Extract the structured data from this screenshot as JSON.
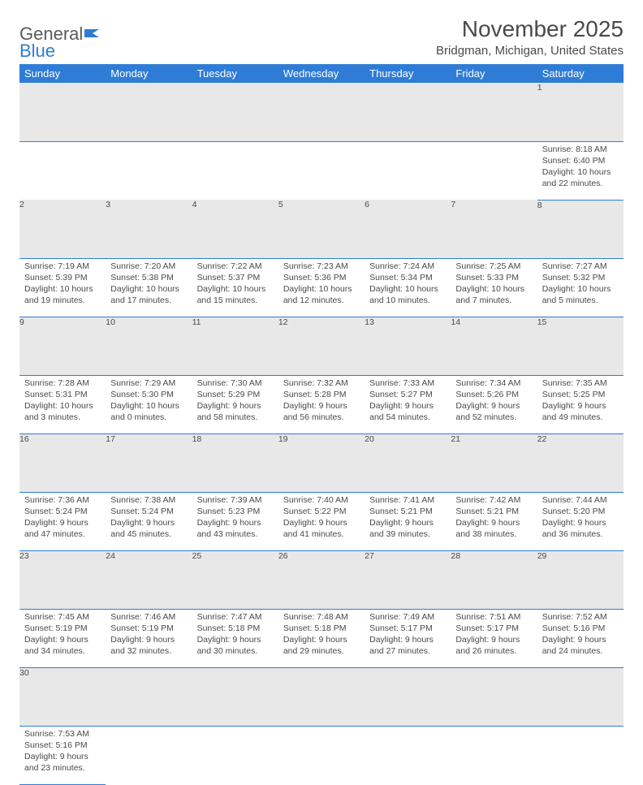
{
  "logo": {
    "text1": "General",
    "text2": "Blue"
  },
  "title": "November 2025",
  "location": "Bridgman, Michigan, United States",
  "colors": {
    "header_bg": "#2e7cd6",
    "header_text": "#ffffff",
    "daynum_bg": "#e8e8e8",
    "text": "#4a4a4a",
    "border": "#2e7cd6"
  },
  "day_headers": [
    "Sunday",
    "Monday",
    "Tuesday",
    "Wednesday",
    "Thursday",
    "Friday",
    "Saturday"
  ],
  "weeks": [
    [
      null,
      null,
      null,
      null,
      null,
      null,
      {
        "n": "1",
        "sr": "Sunrise: 8:18 AM",
        "ss": "Sunset: 6:40 PM",
        "dl": "Daylight: 10 hours and 22 minutes."
      }
    ],
    [
      {
        "n": "2",
        "sr": "Sunrise: 7:19 AM",
        "ss": "Sunset: 5:39 PM",
        "dl": "Daylight: 10 hours and 19 minutes."
      },
      {
        "n": "3",
        "sr": "Sunrise: 7:20 AM",
        "ss": "Sunset: 5:38 PM",
        "dl": "Daylight: 10 hours and 17 minutes."
      },
      {
        "n": "4",
        "sr": "Sunrise: 7:22 AM",
        "ss": "Sunset: 5:37 PM",
        "dl": "Daylight: 10 hours and 15 minutes."
      },
      {
        "n": "5",
        "sr": "Sunrise: 7:23 AM",
        "ss": "Sunset: 5:36 PM",
        "dl": "Daylight: 10 hours and 12 minutes."
      },
      {
        "n": "6",
        "sr": "Sunrise: 7:24 AM",
        "ss": "Sunset: 5:34 PM",
        "dl": "Daylight: 10 hours and 10 minutes."
      },
      {
        "n": "7",
        "sr": "Sunrise: 7:25 AM",
        "ss": "Sunset: 5:33 PM",
        "dl": "Daylight: 10 hours and 7 minutes."
      },
      {
        "n": "8",
        "sr": "Sunrise: 7:27 AM",
        "ss": "Sunset: 5:32 PM",
        "dl": "Daylight: 10 hours and 5 minutes."
      }
    ],
    [
      {
        "n": "9",
        "sr": "Sunrise: 7:28 AM",
        "ss": "Sunset: 5:31 PM",
        "dl": "Daylight: 10 hours and 3 minutes."
      },
      {
        "n": "10",
        "sr": "Sunrise: 7:29 AM",
        "ss": "Sunset: 5:30 PM",
        "dl": "Daylight: 10 hours and 0 minutes."
      },
      {
        "n": "11",
        "sr": "Sunrise: 7:30 AM",
        "ss": "Sunset: 5:29 PM",
        "dl": "Daylight: 9 hours and 58 minutes."
      },
      {
        "n": "12",
        "sr": "Sunrise: 7:32 AM",
        "ss": "Sunset: 5:28 PM",
        "dl": "Daylight: 9 hours and 56 minutes."
      },
      {
        "n": "13",
        "sr": "Sunrise: 7:33 AM",
        "ss": "Sunset: 5:27 PM",
        "dl": "Daylight: 9 hours and 54 minutes."
      },
      {
        "n": "14",
        "sr": "Sunrise: 7:34 AM",
        "ss": "Sunset: 5:26 PM",
        "dl": "Daylight: 9 hours and 52 minutes."
      },
      {
        "n": "15",
        "sr": "Sunrise: 7:35 AM",
        "ss": "Sunset: 5:25 PM",
        "dl": "Daylight: 9 hours and 49 minutes."
      }
    ],
    [
      {
        "n": "16",
        "sr": "Sunrise: 7:36 AM",
        "ss": "Sunset: 5:24 PM",
        "dl": "Daylight: 9 hours and 47 minutes."
      },
      {
        "n": "17",
        "sr": "Sunrise: 7:38 AM",
        "ss": "Sunset: 5:24 PM",
        "dl": "Daylight: 9 hours and 45 minutes."
      },
      {
        "n": "18",
        "sr": "Sunrise: 7:39 AM",
        "ss": "Sunset: 5:23 PM",
        "dl": "Daylight: 9 hours and 43 minutes."
      },
      {
        "n": "19",
        "sr": "Sunrise: 7:40 AM",
        "ss": "Sunset: 5:22 PM",
        "dl": "Daylight: 9 hours and 41 minutes."
      },
      {
        "n": "20",
        "sr": "Sunrise: 7:41 AM",
        "ss": "Sunset: 5:21 PM",
        "dl": "Daylight: 9 hours and 39 minutes."
      },
      {
        "n": "21",
        "sr": "Sunrise: 7:42 AM",
        "ss": "Sunset: 5:21 PM",
        "dl": "Daylight: 9 hours and 38 minutes."
      },
      {
        "n": "22",
        "sr": "Sunrise: 7:44 AM",
        "ss": "Sunset: 5:20 PM",
        "dl": "Daylight: 9 hours and 36 minutes."
      }
    ],
    [
      {
        "n": "23",
        "sr": "Sunrise: 7:45 AM",
        "ss": "Sunset: 5:19 PM",
        "dl": "Daylight: 9 hours and 34 minutes."
      },
      {
        "n": "24",
        "sr": "Sunrise: 7:46 AM",
        "ss": "Sunset: 5:19 PM",
        "dl": "Daylight: 9 hours and 32 minutes."
      },
      {
        "n": "25",
        "sr": "Sunrise: 7:47 AM",
        "ss": "Sunset: 5:18 PM",
        "dl": "Daylight: 9 hours and 30 minutes."
      },
      {
        "n": "26",
        "sr": "Sunrise: 7:48 AM",
        "ss": "Sunset: 5:18 PM",
        "dl": "Daylight: 9 hours and 29 minutes."
      },
      {
        "n": "27",
        "sr": "Sunrise: 7:49 AM",
        "ss": "Sunset: 5:17 PM",
        "dl": "Daylight: 9 hours and 27 minutes."
      },
      {
        "n": "28",
        "sr": "Sunrise: 7:51 AM",
        "ss": "Sunset: 5:17 PM",
        "dl": "Daylight: 9 hours and 26 minutes."
      },
      {
        "n": "29",
        "sr": "Sunrise: 7:52 AM",
        "ss": "Sunset: 5:16 PM",
        "dl": "Daylight: 9 hours and 24 minutes."
      }
    ],
    [
      {
        "n": "30",
        "sr": "Sunrise: 7:53 AM",
        "ss": "Sunset: 5:16 PM",
        "dl": "Daylight: 9 hours and 23 minutes."
      },
      null,
      null,
      null,
      null,
      null,
      null
    ]
  ]
}
